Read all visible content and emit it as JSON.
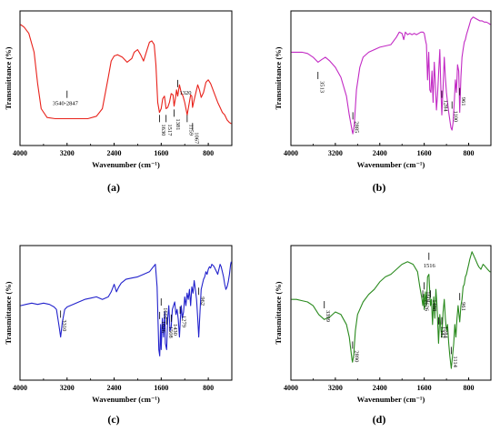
{
  "chart_data": [
    {
      "type": "line",
      "panel_label": "(a)",
      "color": "#e8221b",
      "xlabel": "Wavenumber (cm⁻¹)",
      "ylabel": "Transmittance (%)",
      "x_ticks": [
        "4000",
        "3200",
        "2400",
        "1600",
        "800"
      ],
      "xlim": [
        4000,
        400
      ],
      "x_reversed": true,
      "y_ticks_shown": false,
      "grid": false,
      "series": [
        {
          "x": [
            3990,
            3930,
            3850,
            3760,
            3700,
            3640,
            3540,
            3400,
            3200,
            3000,
            2847,
            2700,
            2600,
            2500,
            2450,
            2400,
            2340,
            2260,
            2180,
            2100,
            2060,
            2000,
            1950,
            1900,
            1840,
            1800,
            1760,
            1720,
            1690,
            1660,
            1630,
            1600,
            1575,
            1545,
            1517,
            1490,
            1460,
            1430,
            1400,
            1381,
            1360,
            1340,
            1320,
            1290,
            1260,
            1230,
            1200,
            1159,
            1130,
            1100,
            1080,
            1067,
            1040,
            1010,
            980,
            950,
            920,
            880,
            840,
            800,
            760,
            720,
            680,
            640,
            600,
            560,
            520,
            480,
            440,
            410
          ],
          "y": [
            92,
            90,
            85,
            70,
            45,
            25,
            18,
            17,
            17,
            17,
            17,
            19,
            25,
            50,
            63,
            67,
            68,
            66,
            62,
            65,
            70,
            72,
            68,
            63,
            72,
            78,
            79,
            76,
            60,
            30,
            22,
            25,
            33,
            35,
            25,
            26,
            30,
            37,
            36,
            27,
            33,
            40,
            35,
            44,
            38,
            35,
            30,
            20,
            28,
            36,
            35,
            26,
            32,
            38,
            44,
            40,
            34,
            38,
            46,
            48,
            45,
            40,
            35,
            30,
            26,
            22,
            20,
            16,
            14,
            13
          ]
        }
      ],
      "annotations": [
        {
          "text": "3540-2847",
          "x": 3200
        },
        {
          "text": "1630",
          "x": 1630
        },
        {
          "text": "1517",
          "x": 1517
        },
        {
          "text": "1381",
          "x": 1381
        },
        {
          "text": "1320",
          "x": 1320
        },
        {
          "text": "1159",
          "x": 1159
        },
        {
          "text": "1067",
          "x": 1067
        }
      ]
    },
    {
      "type": "line",
      "panel_label": "(b)",
      "color": "#c22ac4",
      "xlabel": "Wavenumber (cm⁻¹)",
      "ylabel": "Transmittance (%)",
      "x_ticks": [
        "4000",
        "3200",
        "2400",
        "1600",
        "800"
      ],
      "xlim": [
        4000,
        400
      ],
      "x_reversed": true,
      "y_ticks_shown": false,
      "grid": false,
      "series": [
        {
          "x": [
            3990,
            3900,
            3800,
            3700,
            3600,
            3513,
            3450,
            3380,
            3300,
            3200,
            3100,
            3000,
            2950,
            2900,
            2885,
            2860,
            2820,
            2760,
            2700,
            2600,
            2500,
            2400,
            2300,
            2200,
            2100,
            2050,
            2000,
            1970,
            1940,
            1900,
            1860,
            1820,
            1780,
            1740,
            1700,
            1660,
            1620,
            1600,
            1580,
            1560,
            1540,
            1520,
            1500,
            1480,
            1460,
            1440,
            1420,
            1400,
            1380,
            1360,
            1340,
            1320,
            1300,
            1284,
            1260,
            1240,
            1220,
            1200,
            1180,
            1160,
            1140,
            1120,
            1100,
            1080,
            1060,
            1040,
            1020,
            1000,
            980,
            961,
            940,
            920,
            900,
            880,
            860,
            840,
            800,
            760,
            720,
            680,
            640,
            600,
            560,
            520,
            480,
            440,
            410
          ],
          "y": [
            70,
            70,
            70,
            69,
            66,
            62,
            64,
            66,
            63,
            58,
            50,
            35,
            20,
            8,
            5,
            12,
            40,
            58,
            66,
            70,
            72,
            74,
            75,
            76,
            82,
            86,
            85,
            80,
            86,
            84,
            85,
            84,
            85,
            84,
            85,
            86,
            86,
            85,
            80,
            76,
            48,
            70,
            40,
            38,
            55,
            30,
            62,
            45,
            24,
            36,
            55,
            72,
            40,
            20,
            42,
            66,
            50,
            38,
            30,
            22,
            16,
            10,
            8,
            14,
            30,
            48,
            38,
            60,
            55,
            22,
            50,
            66,
            72,
            78,
            80,
            84,
            90,
            96,
            98,
            97,
            96,
            95,
            95,
            94,
            94,
            93,
            92
          ]
        }
      ],
      "annotations": [
        {
          "text": "3513",
          "x": 3513
        },
        {
          "text": "2885",
          "x": 2885
        },
        {
          "text": "1284",
          "x": 1284
        },
        {
          "text": "1100",
          "x": 1100
        },
        {
          "text": "961",
          "x": 961
        }
      ]
    },
    {
      "type": "line",
      "panel_label": "(c)",
      "color": "#2222cc",
      "xlabel": "Wavenumber (cm⁻¹)",
      "ylabel": "Transmittance (%)",
      "x_ticks": [
        "4000",
        "3200",
        "2400",
        "1600",
        "800"
      ],
      "xlim": [
        4000,
        400
      ],
      "x_reversed": true,
      "y_ticks_shown": false,
      "grid": false,
      "series": [
        {
          "x": [
            3990,
            3900,
            3800,
            3700,
            3600,
            3500,
            3420,
            3380,
            3340,
            3310,
            3280,
            3240,
            3200,
            3100,
            3000,
            2900,
            2800,
            2700,
            2600,
            2500,
            2450,
            2400,
            2360,
            2320,
            2280,
            2200,
            2100,
            2000,
            1900,
            1800,
            1750,
            1700,
            1670,
            1640,
            1626,
            1610,
            1601,
            1580,
            1560,
            1540,
            1530,
            1508,
            1490,
            1470,
            1450,
            1430,
            1410,
            1390,
            1370,
            1350,
            1330,
            1310,
            1290,
            1279,
            1260,
            1240,
            1220,
            1200,
            1180,
            1160,
            1140,
            1120,
            1100,
            1080,
            1060,
            1040,
            1020,
            1000,
            980,
            962,
            940,
            920,
            900,
            880,
            860,
            840,
            820,
            800,
            780,
            760,
            740,
            720,
            700,
            680,
            660,
            640,
            620,
            600,
            580,
            560,
            540,
            520,
            500,
            480,
            460,
            440,
            420,
            410
          ],
          "y": [
            55,
            56,
            57,
            56,
            57,
            56,
            54,
            52,
            40,
            30,
            42,
            52,
            54,
            56,
            58,
            60,
            61,
            62,
            60,
            62,
            66,
            72,
            66,
            70,
            73,
            76,
            77,
            78,
            80,
            82,
            85,
            88,
            70,
            20,
            15,
            40,
            20,
            45,
            30,
            50,
            25,
            20,
            45,
            55,
            35,
            38,
            52,
            55,
            58,
            48,
            52,
            44,
            30,
            40,
            55,
            45,
            50,
            62,
            55,
            65,
            60,
            68,
            55,
            70,
            65,
            75,
            68,
            60,
            45,
            30,
            50,
            68,
            72,
            76,
            78,
            82,
            80,
            84,
            86,
            85,
            88,
            87,
            86,
            84,
            82,
            80,
            84,
            88,
            86,
            82,
            78,
            72,
            68,
            70,
            74,
            80,
            88,
            90
          ]
        }
      ],
      "annotations": [
        {
          "text": "3310",
          "x": 3310
        },
        {
          "text": "1626",
          "x": 1626
        },
        {
          "text": "1601",
          "x": 1601
        },
        {
          "text": "1508",
          "x": 1508
        },
        {
          "text": "1430",
          "x": 1430
        },
        {
          "text": "1279",
          "x": 1279
        },
        {
          "text": "962",
          "x": 962
        }
      ]
    },
    {
      "type": "line",
      "panel_label": "(d)",
      "color": "#2a8a1e",
      "xlabel": "Wavenumber (cm⁻¹)",
      "ylabel": "Transmittance (%)",
      "x_ticks": [
        "4000",
        "3200",
        "2400",
        "1600",
        "800"
      ],
      "xlim": [
        4000,
        400
      ],
      "x_reversed": true,
      "y_ticks_shown": false,
      "grid": false,
      "series": [
        {
          "x": [
            3990,
            3900,
            3800,
            3700,
            3600,
            3500,
            3399,
            3300,
            3200,
            3100,
            3000,
            2950,
            2900,
            2890,
            2870,
            2840,
            2800,
            2700,
            2600,
            2500,
            2400,
            2300,
            2200,
            2100,
            2000,
            1900,
            1800,
            1720,
            1680,
            1640,
            1626,
            1610,
            1601,
            1580,
            1560,
            1540,
            1516,
            1488,
            1470,
            1450,
            1430,
            1410,
            1390,
            1370,
            1342,
            1320,
            1300,
            1284,
            1260,
            1240,
            1220,
            1200,
            1180,
            1160,
            1140,
            1114,
            1090,
            1070,
            1050,
            1030,
            1010,
            990,
            961,
            940,
            920,
            900,
            880,
            860,
            840,
            820,
            800,
            780,
            760,
            740,
            720,
            700,
            680,
            660,
            640,
            620,
            600,
            580,
            560,
            540,
            520,
            500,
            480,
            460,
            440,
            420,
            410
          ],
          "y": [
            60,
            60,
            59,
            58,
            55,
            48,
            44,
            46,
            50,
            48,
            40,
            30,
            12,
            10,
            16,
            35,
            48,
            58,
            64,
            68,
            74,
            78,
            80,
            84,
            88,
            90,
            88,
            82,
            70,
            60,
            55,
            64,
            52,
            66,
            55,
            78,
            80,
            55,
            60,
            40,
            62,
            45,
            68,
            55,
            25,
            48,
            36,
            30,
            50,
            60,
            45,
            35,
            40,
            25,
            15,
            5,
            15,
            25,
            40,
            30,
            45,
            55,
            42,
            55,
            60,
            70,
            72,
            78,
            80,
            84,
            88,
            92,
            95,
            98,
            96,
            94,
            92,
            90,
            88,
            86,
            85,
            84,
            86,
            88,
            87,
            86,
            85,
            84,
            83,
            82,
            82
          ]
        }
      ],
      "annotations": [
        {
          "text": "3399",
          "x": 3399
        },
        {
          "text": "2890",
          "x": 2890
        },
        {
          "text": "1626",
          "x": 1626
        },
        {
          "text": "1601",
          "x": 1601
        },
        {
          "text": "1516",
          "x": 1516
        },
        {
          "text": "1488",
          "x": 1488
        },
        {
          "text": "1342",
          "x": 1342
        },
        {
          "text": "1284",
          "x": 1284
        },
        {
          "text": "1114",
          "x": 1114
        },
        {
          "text": "961",
          "x": 961
        }
      ]
    }
  ]
}
